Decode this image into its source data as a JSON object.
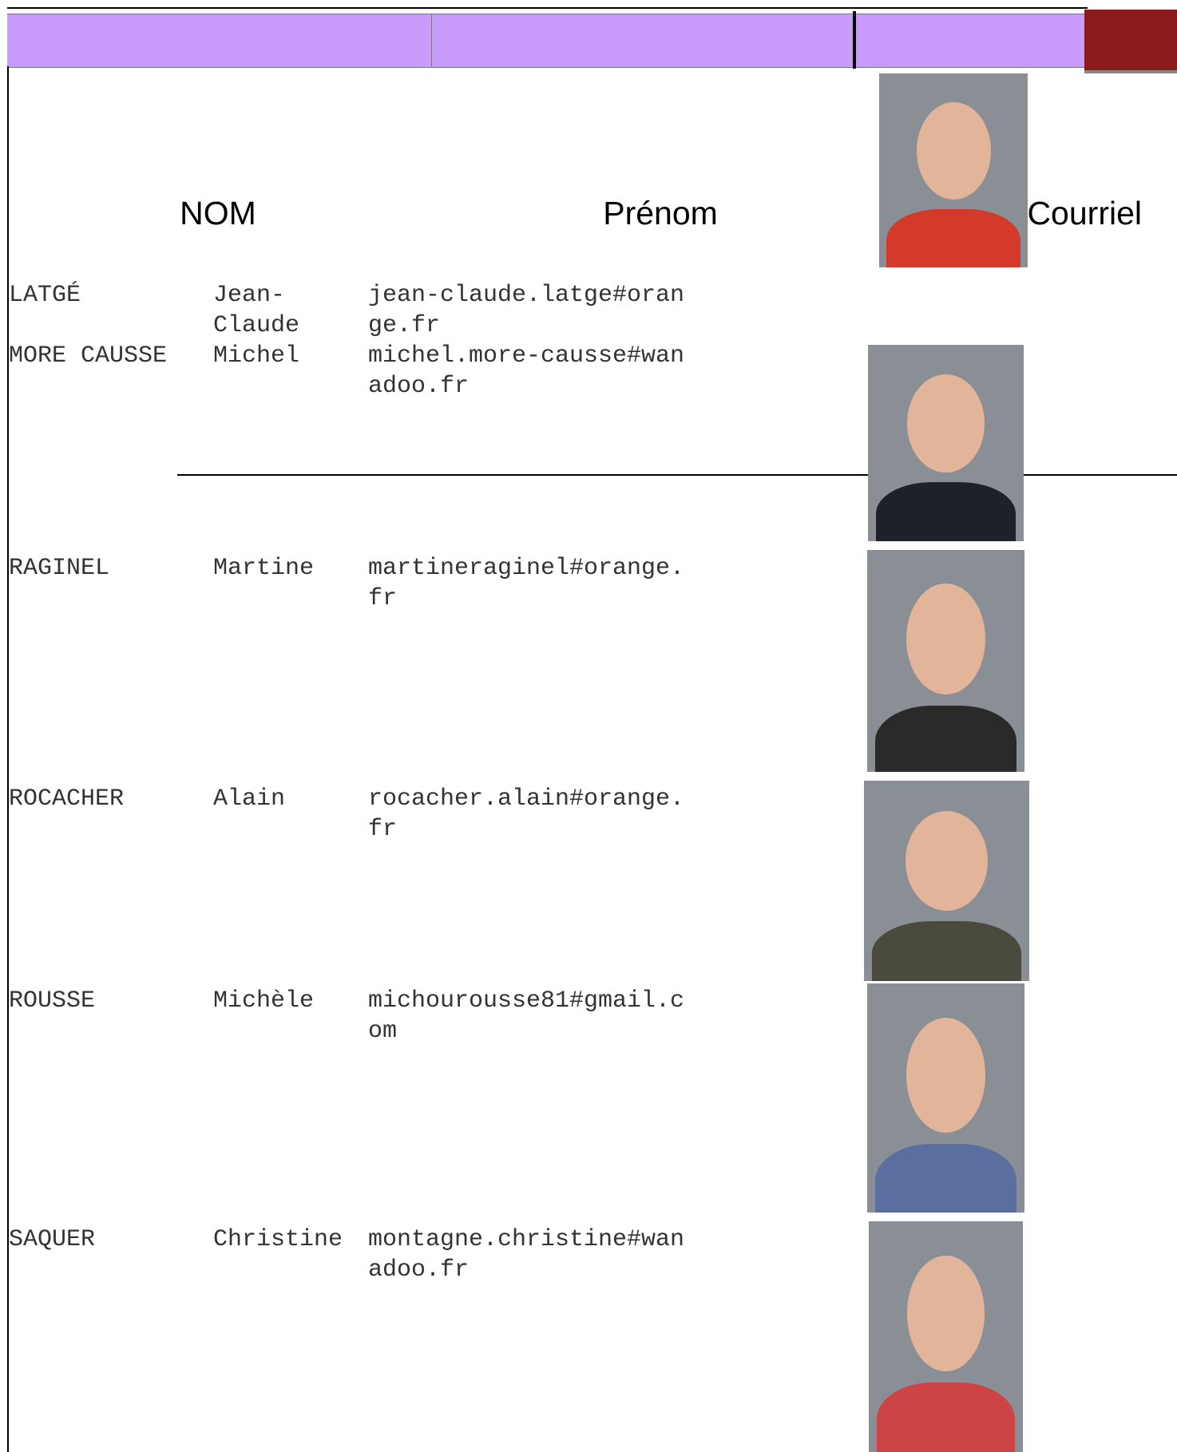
{
  "header": {
    "columns": [
      "NOM",
      "Prénom",
      "Courriel"
    ]
  },
  "table": {
    "rows": [
      [
        "LATGÉ",
        "Jean-Claude",
        "jean-claude.latge#orange.fr"
      ],
      [
        "MORE CAUSSE",
        "Michel",
        "michel.more-causse#wanadoo.fr"
      ],
      [
        "RAGINEL",
        "Martine",
        "martineraginel#orange.fr"
      ],
      [
        "ROCACHER",
        "Alain",
        "rocacher.alain#orange.fr"
      ],
      [
        "ROUSSE",
        "Michèle",
        "michourousse81#gmail.com"
      ],
      [
        "SAQUER",
        "Christine",
        "montagne.christine#wanadoo.fr"
      ]
    ]
  }
}
